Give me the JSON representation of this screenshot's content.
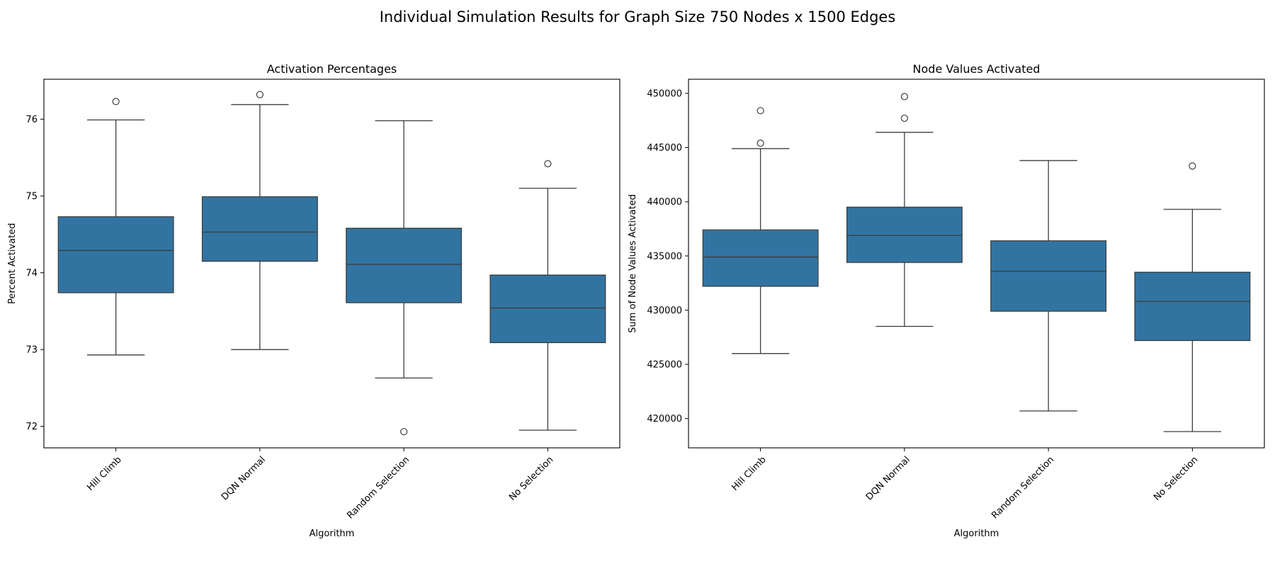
{
  "figure": {
    "suptitle": "Individual Simulation Results for Graph Size 750 Nodes x 1500 Edges"
  },
  "colors": {
    "box_fill": "#3274a1",
    "line": "#3d3d3d",
    "axis": "#000000",
    "background": "#ffffff"
  },
  "chart_data": [
    {
      "type": "box",
      "title": "Activation Percentages",
      "xlabel": "Algorithm",
      "ylabel": "Percent Activated",
      "ylim": [
        71.72,
        76.52
      ],
      "yticks": [
        72,
        73,
        74,
        75,
        76
      ],
      "ytick_labels": [
        "72",
        "73",
        "74",
        "75",
        "76"
      ],
      "categories": [
        "Hill Climb",
        "DQN Normal",
        "Random Selection",
        "No Selection"
      ],
      "grid": false,
      "boxes": [
        {
          "whisker_low": 72.93,
          "q1": 73.74,
          "median": 74.29,
          "q3": 74.73,
          "whisker_high": 75.99,
          "outliers": [
            76.23
          ]
        },
        {
          "whisker_low": 73.0,
          "q1": 74.15,
          "median": 74.53,
          "q3": 74.99,
          "whisker_high": 76.19,
          "outliers": [
            76.32
          ]
        },
        {
          "whisker_low": 72.63,
          "q1": 73.61,
          "median": 74.11,
          "q3": 74.58,
          "whisker_high": 75.98,
          "outliers": [
            71.93
          ]
        },
        {
          "whisker_low": 71.95,
          "q1": 73.09,
          "median": 73.54,
          "q3": 73.97,
          "whisker_high": 75.1,
          "outliers": [
            75.42
          ]
        }
      ]
    },
    {
      "type": "box",
      "title": "Node Values Activated",
      "xlabel": "Algorithm",
      "ylabel": "Sum of Node Values Activated",
      "ylim": [
        417300,
        451300
      ],
      "yticks": [
        420000,
        425000,
        430000,
        435000,
        440000,
        445000,
        450000
      ],
      "ytick_labels": [
        "420000",
        "425000",
        "430000",
        "435000",
        "440000",
        "445000",
        "450000"
      ],
      "categories": [
        "Hill Climb",
        "DQN Normal",
        "Random Selection",
        "No Selection"
      ],
      "grid": false,
      "boxes": [
        {
          "whisker_low": 426000,
          "q1": 432200,
          "median": 434900,
          "q3": 437400,
          "whisker_high": 444900,
          "outliers": [
            445400,
            448400
          ]
        },
        {
          "whisker_low": 428500,
          "q1": 434400,
          "median": 436900,
          "q3": 439500,
          "whisker_high": 446400,
          "outliers": [
            447700,
            449700
          ]
        },
        {
          "whisker_low": 420700,
          "q1": 429900,
          "median": 433600,
          "q3": 436400,
          "whisker_high": 443800,
          "outliers": []
        },
        {
          "whisker_low": 418800,
          "q1": 427200,
          "median": 430800,
          "q3": 433500,
          "whisker_high": 439300,
          "outliers": [
            443300
          ]
        }
      ]
    }
  ]
}
